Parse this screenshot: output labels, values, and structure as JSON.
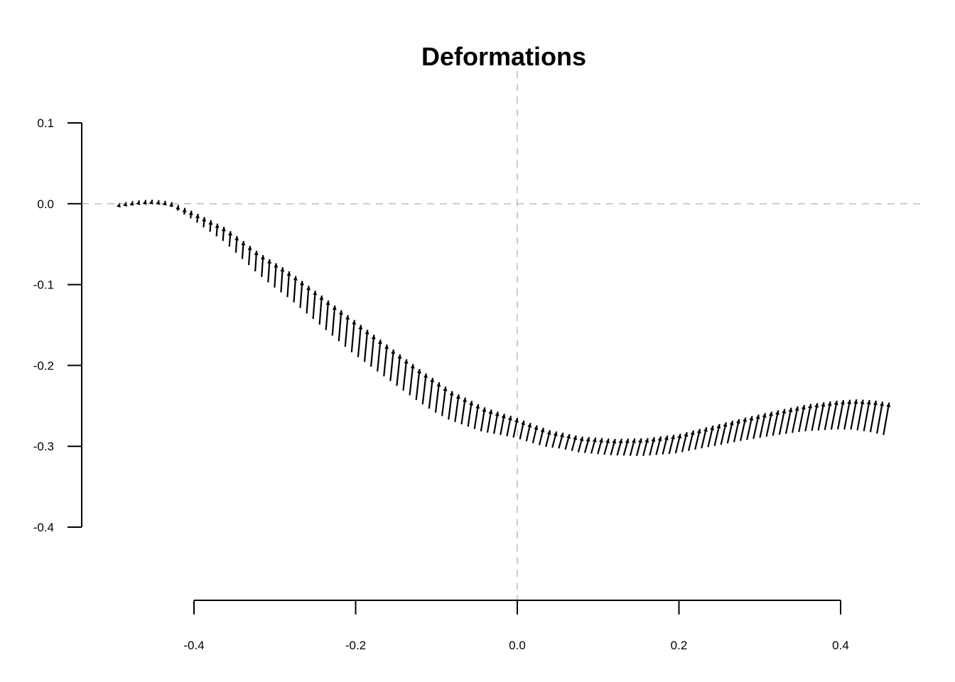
{
  "chart_data": {
    "type": "scatter",
    "subtype": "arrow-field",
    "title": "Deformations",
    "xlabel": "",
    "ylabel": "",
    "xlim": [
      -0.5,
      0.5
    ],
    "ylim": [
      -0.4,
      0.1
    ],
    "x_ticks": [
      -0.4,
      -0.2,
      0.0,
      0.2,
      0.4
    ],
    "x_tick_labels": [
      "-0.4",
      "-0.2",
      "0.0",
      "0.2",
      "0.4"
    ],
    "y_ticks": [
      -0.4,
      -0.3,
      -0.2,
      -0.1,
      0.0,
      0.1
    ],
    "y_tick_labels": [
      "-0.4",
      "-0.3",
      "-0.2",
      "-0.1",
      "0.0",
      "0.1"
    ],
    "reference_lines": {
      "vertical_x": 0.0,
      "horizontal_y": 0.0,
      "style": "dashed",
      "color": "#bebebe"
    },
    "grid": false,
    "arrow_color": "#000000",
    "arrows": {
      "x_start": -0.5,
      "x_end": 0.46,
      "count": 120,
      "head_curve": [
        [
          -0.5,
          0.0
        ],
        [
          -0.47,
          0.004
        ],
        [
          -0.45,
          0.005
        ],
        [
          -0.43,
          0.003
        ],
        [
          -0.4,
          -0.01
        ],
        [
          -0.36,
          -0.03
        ],
        [
          -0.32,
          -0.06
        ],
        [
          -0.28,
          -0.085
        ],
        [
          -0.24,
          -0.115
        ],
        [
          -0.2,
          -0.145
        ],
        [
          -0.16,
          -0.175
        ],
        [
          -0.12,
          -0.205
        ],
        [
          -0.08,
          -0.232
        ],
        [
          -0.04,
          -0.252
        ],
        [
          0.0,
          -0.265
        ],
        [
          0.04,
          -0.28
        ],
        [
          0.08,
          -0.288
        ],
        [
          0.12,
          -0.291
        ],
        [
          0.16,
          -0.29
        ],
        [
          0.2,
          -0.285
        ],
        [
          0.24,
          -0.275
        ],
        [
          0.28,
          -0.265
        ],
        [
          0.32,
          -0.256
        ],
        [
          0.36,
          -0.248
        ],
        [
          0.4,
          -0.243
        ],
        [
          0.42,
          -0.242
        ],
        [
          0.44,
          -0.243
        ],
        [
          0.46,
          -0.246
        ]
      ],
      "length_curve": [
        [
          -0.5,
          0.0
        ],
        [
          -0.45,
          0.002
        ],
        [
          -0.4,
          0.01
        ],
        [
          -0.36,
          0.018
        ],
        [
          -0.3,
          0.03
        ],
        [
          -0.2,
          0.04
        ],
        [
          -0.1,
          0.038
        ],
        [
          0.0,
          0.024
        ],
        [
          0.06,
          0.019
        ],
        [
          0.12,
          0.02
        ],
        [
          0.2,
          0.024
        ],
        [
          0.3,
          0.03
        ],
        [
          0.4,
          0.036
        ],
        [
          0.46,
          0.04
        ]
      ],
      "tilt_curve": [
        [
          -0.5,
          0.0
        ],
        [
          -0.4,
          -0.001
        ],
        [
          -0.3,
          -0.002
        ],
        [
          -0.2,
          -0.0035
        ],
        [
          -0.1,
          -0.0045
        ],
        [
          0.0,
          -0.005
        ],
        [
          0.1,
          -0.0055
        ],
        [
          0.2,
          -0.006
        ],
        [
          0.3,
          -0.0065
        ],
        [
          0.4,
          -0.007
        ],
        [
          0.46,
          -0.007
        ]
      ]
    }
  }
}
